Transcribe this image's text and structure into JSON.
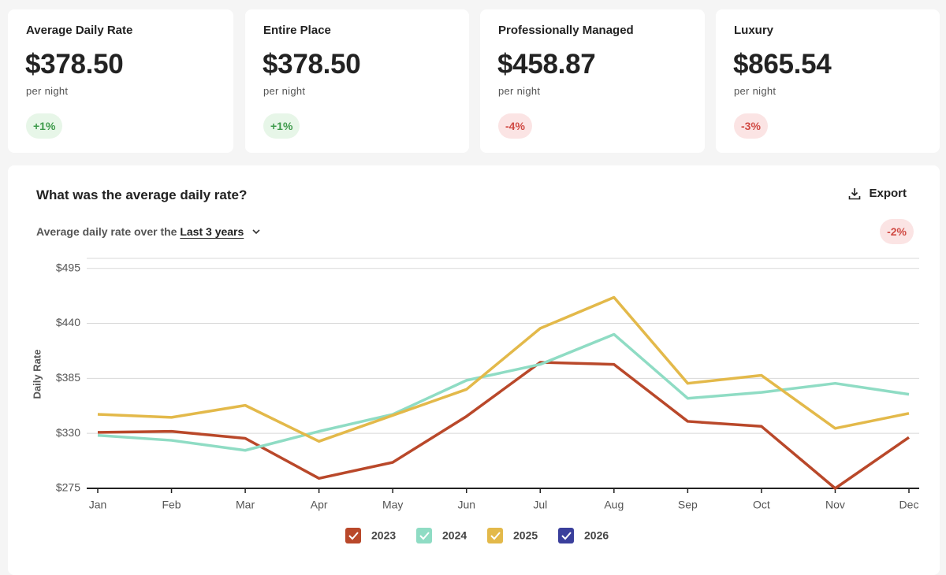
{
  "cards": [
    {
      "title": "Average Daily Rate",
      "value": "$378.50",
      "unit": "per night",
      "change": "+1%"
    },
    {
      "title": "Entire Place",
      "value": "$378.50",
      "unit": "per night",
      "change": "+1%"
    },
    {
      "title": "Professionally Managed",
      "value": "$458.87",
      "unit": "per night",
      "change": "-4%"
    },
    {
      "title": "Luxury",
      "value": "$865.54",
      "unit": "per night",
      "change": "-3%"
    }
  ],
  "panel": {
    "title": "What was the average daily rate?",
    "export": "Export",
    "subtitle": "Average daily rate over the",
    "period": "Last 3 years",
    "change": "-2%"
  },
  "chart_data": {
    "type": "line",
    "y_label": "Daily Rate",
    "categories": [
      "Jan",
      "Feb",
      "Mar",
      "Apr",
      "May",
      "Jun",
      "Jul",
      "Aug",
      "Sep",
      "Oct",
      "Nov",
      "Dec"
    ],
    "series": [
      {
        "name": "2023",
        "color": "#b9482a",
        "values": [
          331,
          332,
          325,
          285,
          301,
          347,
          401,
          399,
          342,
          337,
          275,
          326
        ]
      },
      {
        "name": "2024",
        "color": "#8fdcc4",
        "values": [
          328,
          323,
          313,
          332,
          349,
          383,
          399,
          429,
          365,
          371,
          380,
          369
        ]
      },
      {
        "name": "2025",
        "color": "#e3b94a",
        "values": [
          349,
          346,
          358,
          322,
          348,
          374,
          435,
          466,
          380,
          388,
          335,
          350
        ]
      },
      {
        "name": "2026",
        "color": "#3a3f9c",
        "values": [
          null,
          null,
          null,
          null,
          null,
          null,
          null,
          null,
          null,
          null,
          null,
          null
        ]
      }
    ],
    "ylim": [
      275,
      505
    ],
    "yticks": [
      {
        "value": 275,
        "label": "$275"
      },
      {
        "value": 330,
        "label": "$330"
      },
      {
        "value": 385,
        "label": "$385"
      },
      {
        "value": 440,
        "label": "$440"
      },
      {
        "value": 495,
        "label": "$495"
      }
    ],
    "grid": true
  }
}
